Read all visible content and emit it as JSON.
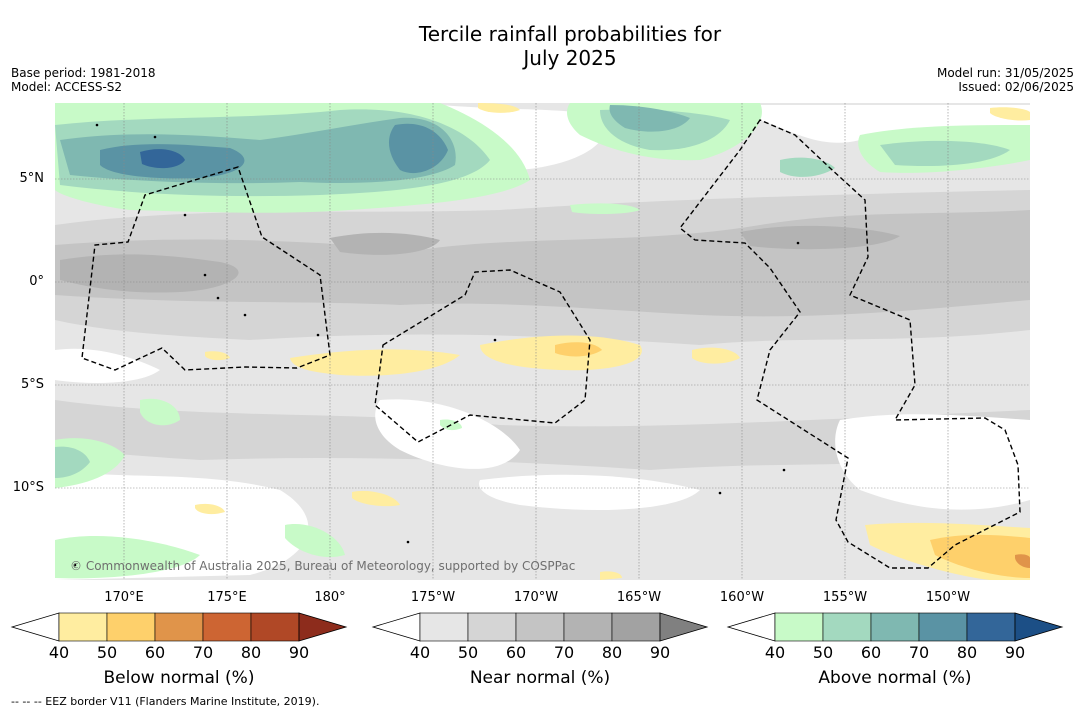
{
  "title_line1": "Tercile rainfall probabilities for",
  "title_line2": "July 2025",
  "base_period": "Base period: 1981-2018",
  "model": "Model: ACCESS-S2",
  "model_run": "Model run: 31/05/2025",
  "issued": "Issued: 02/06/2025",
  "lat_labels": [
    "5°N",
    "0°",
    "5°S",
    "10°S"
  ],
  "lon_labels": [
    "170°E",
    "175°E",
    "180°",
    "175°W",
    "170°W",
    "165°W",
    "160°W",
    "155°W",
    "150°W"
  ],
  "copyright": "© Commonwealth of Australia 2025, Bureau of Meteorology, supported by COSPPac",
  "colorbars": [
    {
      "title": "Below normal (%)",
      "ticks": [
        "40",
        "50",
        "60",
        "70",
        "80",
        "90"
      ],
      "colors": [
        "#ffffff",
        "#ffeda0",
        "#fed06b",
        "#e0944a",
        "#cd6533",
        "#b04826",
        "#8d2c1c"
      ]
    },
    {
      "title": "Near normal (%)",
      "ticks": [
        "40",
        "50",
        "60",
        "70",
        "80",
        "90"
      ],
      "colors": [
        "#ffffff",
        "#e6e6e6",
        "#d5d5d5",
        "#c4c4c4",
        "#b3b3b3",
        "#a2a2a2",
        "#808080"
      ]
    },
    {
      "title": "Above normal (%)",
      "ticks": [
        "40",
        "50",
        "60",
        "70",
        "80",
        "90"
      ],
      "colors": [
        "#ffffff",
        "#c8fac8",
        "#a3d9bf",
        "#7fb8b1",
        "#5a93a4",
        "#336699",
        "#1c4f86"
      ]
    }
  ],
  "footnote": "-- -- -- EEZ border V11 (Flanders Marine Institute, 2019)."
}
